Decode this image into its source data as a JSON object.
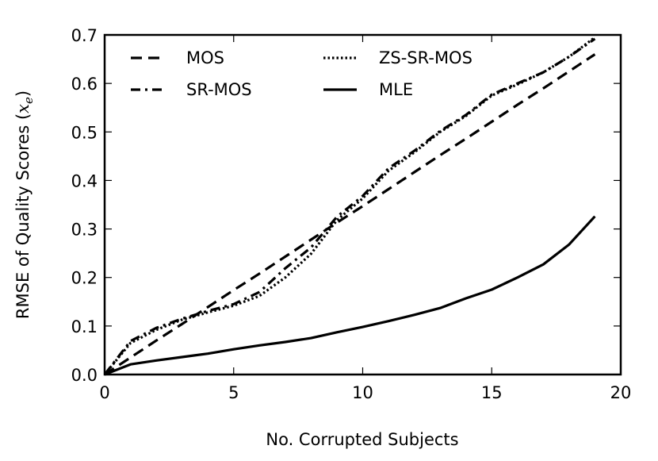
{
  "chart_data": {
    "type": "line",
    "title": "",
    "xlabel": "No. Corrupted Subjects",
    "ylabel": "RMSE of Quality Scores (x_e)",
    "ylabel_plain": "RMSE of Quality Scores (",
    "ylabel_math": "x",
    "ylabel_sub": "e",
    "ylabel_close": ")",
    "xlim": [
      0,
      20
    ],
    "ylim": [
      0,
      0.7
    ],
    "xticks": [
      0,
      5,
      10,
      15,
      20
    ],
    "xtick_labels": [
      "0",
      "5",
      "10",
      "15",
      "20"
    ],
    "yticks": [
      0.0,
      0.1,
      0.2,
      0.3,
      0.4,
      0.5,
      0.6,
      0.7
    ],
    "ytick_labels": [
      "0.0",
      "0.1",
      "0.2",
      "0.3",
      "0.4",
      "0.5",
      "0.6",
      "0.7"
    ],
    "grid": false,
    "legend_position": "upper left (2 columns)",
    "x": [
      0,
      1,
      2,
      3,
      4,
      5,
      6,
      7,
      8,
      9,
      10,
      11,
      12,
      13,
      14,
      15,
      16,
      17,
      18,
      19
    ],
    "series": [
      {
        "name": "MOS",
        "style": "dashed",
        "values": [
          0.0,
          0.035,
          0.07,
          0.104,
          0.139,
          0.174,
          0.208,
          0.243,
          0.278,
          0.313,
          0.347,
          0.382,
          0.417,
          0.452,
          0.486,
          0.521,
          0.556,
          0.59,
          0.625,
          0.66
        ]
      },
      {
        "name": "SR-MOS",
        "style": "dashdot",
        "values": [
          0.0,
          0.069,
          0.096,
          0.115,
          0.131,
          0.145,
          0.17,
          0.219,
          0.262,
          0.325,
          0.368,
          0.425,
          0.461,
          0.502,
          0.535,
          0.577,
          0.6,
          0.623,
          0.655,
          0.692
        ]
      },
      {
        "name": "ZS-SR-MOS",
        "style": "dotted",
        "values": [
          0.0,
          0.065,
          0.092,
          0.113,
          0.128,
          0.142,
          0.162,
          0.2,
          0.249,
          0.318,
          0.363,
          0.42,
          0.458,
          0.5,
          0.533,
          0.575,
          0.598,
          0.623,
          0.655,
          0.695
        ]
      },
      {
        "name": "MLE",
        "style": "solid",
        "values": [
          0.0,
          0.021,
          0.029,
          0.036,
          0.043,
          0.052,
          0.06,
          0.067,
          0.075,
          0.087,
          0.098,
          0.11,
          0.123,
          0.137,
          0.157,
          0.175,
          0.2,
          0.227,
          0.268,
          0.326
        ]
      }
    ]
  },
  "legend": {
    "items": [
      {
        "label": "MOS",
        "style": "dashed"
      },
      {
        "label": "SR-MOS",
        "style": "dashdot"
      },
      {
        "label": "ZS-SR-MOS",
        "style": "dotted"
      },
      {
        "label": "MLE",
        "style": "solid"
      }
    ]
  },
  "colors": {
    "line": "#000000",
    "axes": "#000000",
    "background": "#ffffff"
  }
}
